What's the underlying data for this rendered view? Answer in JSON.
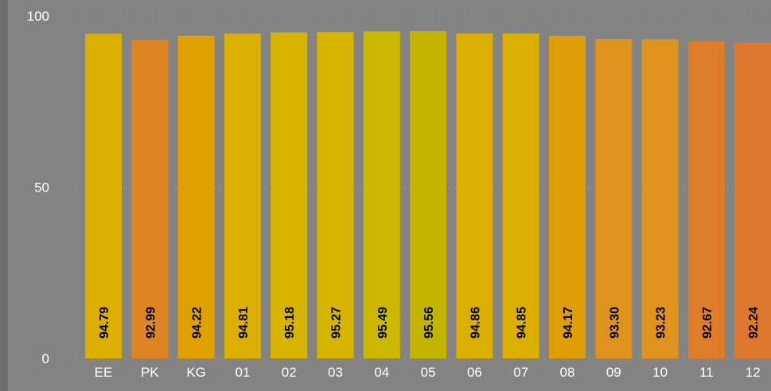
{
  "chart_data": {
    "type": "bar",
    "title": "",
    "xlabel": "",
    "ylabel": "",
    "ylim": [
      0,
      100
    ],
    "yticks": [
      0,
      50,
      100
    ],
    "grid": "horizontal dotted",
    "categories": [
      "EE",
      "PK",
      "KG",
      "01",
      "02",
      "03",
      "04",
      "05",
      "06",
      "07",
      "08",
      "09",
      "10",
      "11",
      "12"
    ],
    "values": [
      94.79,
      92.99,
      94.22,
      94.81,
      95.18,
      95.27,
      95.49,
      95.56,
      94.86,
      94.85,
      94.17,
      93.3,
      93.23,
      92.67,
      92.24
    ],
    "data_labels": [
      "94.79",
      "92.99",
      "94.22",
      "94.81",
      "95.18",
      "95.27",
      "95.49",
      "95.56",
      "94.86",
      "94.85",
      "94.17",
      "93.30",
      "93.23",
      "92.67",
      "92.24"
    ],
    "bar_colors": [
      "#dbae00",
      "#de8424",
      "#e0a000",
      "#dbae00",
      "#d6b400",
      "#d6b400",
      "#cdb800",
      "#c2b400",
      "#dbae00",
      "#dbae00",
      "#df9e08",
      "#df921c",
      "#df921c",
      "#df7c2a",
      "#df782f"
    ]
  },
  "colors": {
    "background": "#838383",
    "frame": "#6e6e6e",
    "axis_text": "#ffffff",
    "data_label_text": "#000000"
  }
}
